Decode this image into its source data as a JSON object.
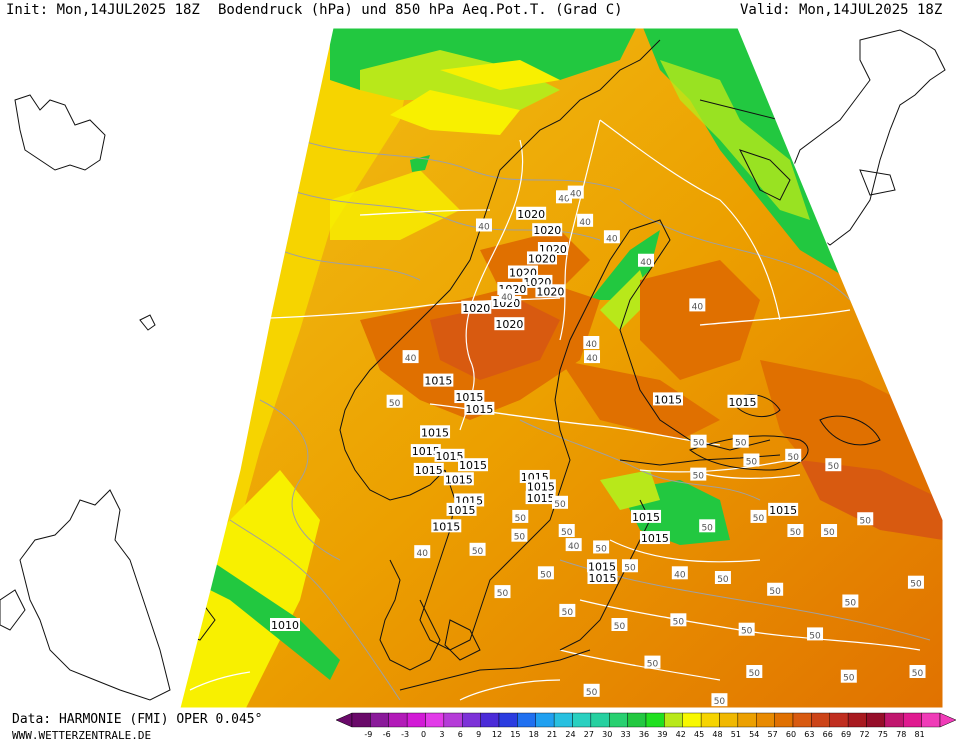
{
  "header": {
    "init": "Init: Mon,14JUL2025 18Z",
    "title": "Bodendruck (hPa) und 850 hPa Aeq.Pot.T. (Grad C)",
    "valid": "Valid: Mon,14JUL2025 18Z"
  },
  "footer": {
    "source": "Data: HARMONIE (FMI) OPER 0.045°",
    "website": "WWW.WETTERZENTRALE.DE"
  },
  "colorbar": {
    "ticks": [
      "-9",
      "-6",
      "-3",
      "0",
      "3",
      "6",
      "9",
      "12",
      "15",
      "18",
      "21",
      "24",
      "27",
      "30",
      "33",
      "36",
      "39",
      "42",
      "45",
      "48",
      "51",
      "54",
      "57",
      "60",
      "63",
      "66",
      "69",
      "72",
      "75",
      "78",
      "81"
    ],
    "colors": [
      "#6a0a6a",
      "#8a1a9a",
      "#b21ab8",
      "#d21ad6",
      "#e23be8",
      "#b53cd8",
      "#7d32d8",
      "#4b2bd8",
      "#2b3ce0",
      "#2070f0",
      "#20a0f0",
      "#28c0e0",
      "#2ad0c0",
      "#26d0a0",
      "#28d070",
      "#22c840",
      "#20e020",
      "#b8e81a",
      "#f8f800",
      "#f6d400",
      "#f0b800",
      "#eca000",
      "#e88a00",
      "#e07000",
      "#d85a10",
      "#cc4418",
      "#c02e20",
      "#a81a20",
      "#960e2a",
      "#c0166e",
      "#e01a90",
      "#f03cb8"
    ]
  },
  "map_labels": {
    "isobars": [
      {
        "text": "1020",
        "lon": 14.5,
        "lat": 70.5
      },
      {
        "text": "1020",
        "lon": 16.5,
        "lat": 69.8
      },
      {
        "text": "1020",
        "lon": 17.2,
        "lat": 69.0
      },
      {
        "text": "1020",
        "lon": 16.0,
        "lat": 68.6
      },
      {
        "text": "1020",
        "lon": 14.0,
        "lat": 68.0
      },
      {
        "text": "1020",
        "lon": 15.6,
        "lat": 67.6
      },
      {
        "text": "1020",
        "lon": 13.0,
        "lat": 67.3
      },
      {
        "text": "1020",
        "lon": 17.0,
        "lat": 67.2
      },
      {
        "text": "1020",
        "lon": 12.5,
        "lat": 66.7
      },
      {
        "text": "1020",
        "lon": 9.5,
        "lat": 66.5
      },
      {
        "text": "1020",
        "lon": 13.0,
        "lat": 65.8
      },
      {
        "text": "1015",
        "lon": 7.0,
        "lat": 63.4
      },
      {
        "text": "1015",
        "lon": 10.0,
        "lat": 62.7
      },
      {
        "text": "1015",
        "lon": 11.0,
        "lat": 62.2
      },
      {
        "text": "1015",
        "lon": 27.5,
        "lat": 62.6
      },
      {
        "text": "1015",
        "lon": 34.0,
        "lat": 62.5
      },
      {
        "text": "1015",
        "lon": 7.5,
        "lat": 61.2
      },
      {
        "text": "1015",
        "lon": 7.0,
        "lat": 60.4
      },
      {
        "text": "1015",
        "lon": 9.0,
        "lat": 60.2
      },
      {
        "text": "1015",
        "lon": 11.0,
        "lat": 59.8
      },
      {
        "text": "1015",
        "lon": 7.5,
        "lat": 59.6
      },
      {
        "text": "1015",
        "lon": 10.0,
        "lat": 59.2
      },
      {
        "text": "1015",
        "lon": 16.0,
        "lat": 59.3
      },
      {
        "text": "1015",
        "lon": 16.5,
        "lat": 58.9
      },
      {
        "text": "1015",
        "lon": 16.5,
        "lat": 58.4
      },
      {
        "text": "1015",
        "lon": 11.0,
        "lat": 58.3
      },
      {
        "text": "1015",
        "lon": 10.5,
        "lat": 57.9
      },
      {
        "text": "1015",
        "lon": 9.5,
        "lat": 57.2
      },
      {
        "text": "1015",
        "lon": 24.5,
        "lat": 57.6
      },
      {
        "text": "1015",
        "lon": 25.0,
        "lat": 56.7
      },
      {
        "text": "1015",
        "lon": 35.0,
        "lat": 57.9
      },
      {
        "text": "1015",
        "lon": 21.0,
        "lat": 55.5
      },
      {
        "text": "1015",
        "lon": 21.0,
        "lat": 55.0
      },
      {
        "text": "1010",
        "lon": -0.5,
        "lat": 53.0
      }
    ],
    "theta_e": [
      {
        "text": "40",
        "lon": 18.5,
        "lat": 71.2
      },
      {
        "text": "40",
        "lon": 20.0,
        "lat": 71.4
      },
      {
        "text": "40",
        "lon": 9.0,
        "lat": 70.0
      },
      {
        "text": "40",
        "lon": 21.0,
        "lat": 70.2
      },
      {
        "text": "40",
        "lon": 24.0,
        "lat": 69.5
      },
      {
        "text": "40",
        "lon": 27.5,
        "lat": 68.5
      },
      {
        "text": "40",
        "lon": 12.5,
        "lat": 67.0
      },
      {
        "text": "40",
        "lon": 32.0,
        "lat": 66.6
      },
      {
        "text": "40",
        "lon": 4.0,
        "lat": 64.4
      },
      {
        "text": "40",
        "lon": 21.0,
        "lat": 65.0
      },
      {
        "text": "40",
        "lon": 21.0,
        "lat": 64.4
      },
      {
        "text": "40",
        "lon": 19.0,
        "lat": 56.4
      },
      {
        "text": "40",
        "lon": 26.5,
        "lat": 55.2
      },
      {
        "text": "40",
        "lon": 8.0,
        "lat": 56.1
      },
      {
        "text": "50",
        "lon": 3.5,
        "lat": 62.5
      },
      {
        "text": "50",
        "lon": 29.5,
        "lat": 60.8
      },
      {
        "text": "50",
        "lon": 33.0,
        "lat": 60.8
      },
      {
        "text": "50",
        "lon": 29.0,
        "lat": 59.4
      },
      {
        "text": "50",
        "lon": 33.5,
        "lat": 60.0
      },
      {
        "text": "50",
        "lon": 37.0,
        "lat": 60.2
      },
      {
        "text": "50",
        "lon": 40.0,
        "lat": 59.8
      },
      {
        "text": "50",
        "lon": 15.0,
        "lat": 57.6
      },
      {
        "text": "50",
        "lon": 18.0,
        "lat": 58.2
      },
      {
        "text": "50",
        "lon": 15.0,
        "lat": 56.8
      },
      {
        "text": "50",
        "lon": 18.5,
        "lat": 57.0
      },
      {
        "text": "50",
        "lon": 21.0,
        "lat": 56.3
      },
      {
        "text": "50",
        "lon": 29.0,
        "lat": 57.2
      },
      {
        "text": "50",
        "lon": 33.0,
        "lat": 57.6
      },
      {
        "text": "50",
        "lon": 35.5,
        "lat": 57.0
      },
      {
        "text": "50",
        "lon": 38.0,
        "lat": 57.0
      },
      {
        "text": "50",
        "lon": 41.0,
        "lat": 57.5
      },
      {
        "text": "50",
        "lon": 12.0,
        "lat": 56.2
      },
      {
        "text": "50",
        "lon": 17.0,
        "lat": 55.2
      },
      {
        "text": "50",
        "lon": 23.0,
        "lat": 55.5
      },
      {
        "text": "50",
        "lon": 29.5,
        "lat": 55.0
      },
      {
        "text": "50",
        "lon": 33.0,
        "lat": 54.5
      },
      {
        "text": "50",
        "lon": 38.0,
        "lat": 54.0
      },
      {
        "text": "50",
        "lon": 43.0,
        "lat": 54.8
      },
      {
        "text": "50",
        "lon": 14.0,
        "lat": 54.4
      },
      {
        "text": "50",
        "lon": 18.5,
        "lat": 53.6
      },
      {
        "text": "50",
        "lon": 22.0,
        "lat": 53.0
      },
      {
        "text": "50",
        "lon": 26.0,
        "lat": 53.2
      },
      {
        "text": "50",
        "lon": 30.5,
        "lat": 52.8
      },
      {
        "text": "50",
        "lon": 35.0,
        "lat": 52.6
      },
      {
        "text": "50",
        "lon": 24.0,
        "lat": 51.4
      },
      {
        "text": "50",
        "lon": 30.5,
        "lat": 51.0
      },
      {
        "text": "50",
        "lon": 36.5,
        "lat": 50.8
      },
      {
        "text": "50",
        "lon": 41.0,
        "lat": 51.0
      },
      {
        "text": "50",
        "lon": 20.0,
        "lat": 50.2
      },
      {
        "text": "50",
        "lon": 28.0,
        "lat": 49.8
      }
    ]
  },
  "legend_colors": {
    "land_outline": "#111111",
    "border": "#ffffff",
    "theta_e_contour": "#a0a0a0",
    "isobar": "#ffffff"
  }
}
